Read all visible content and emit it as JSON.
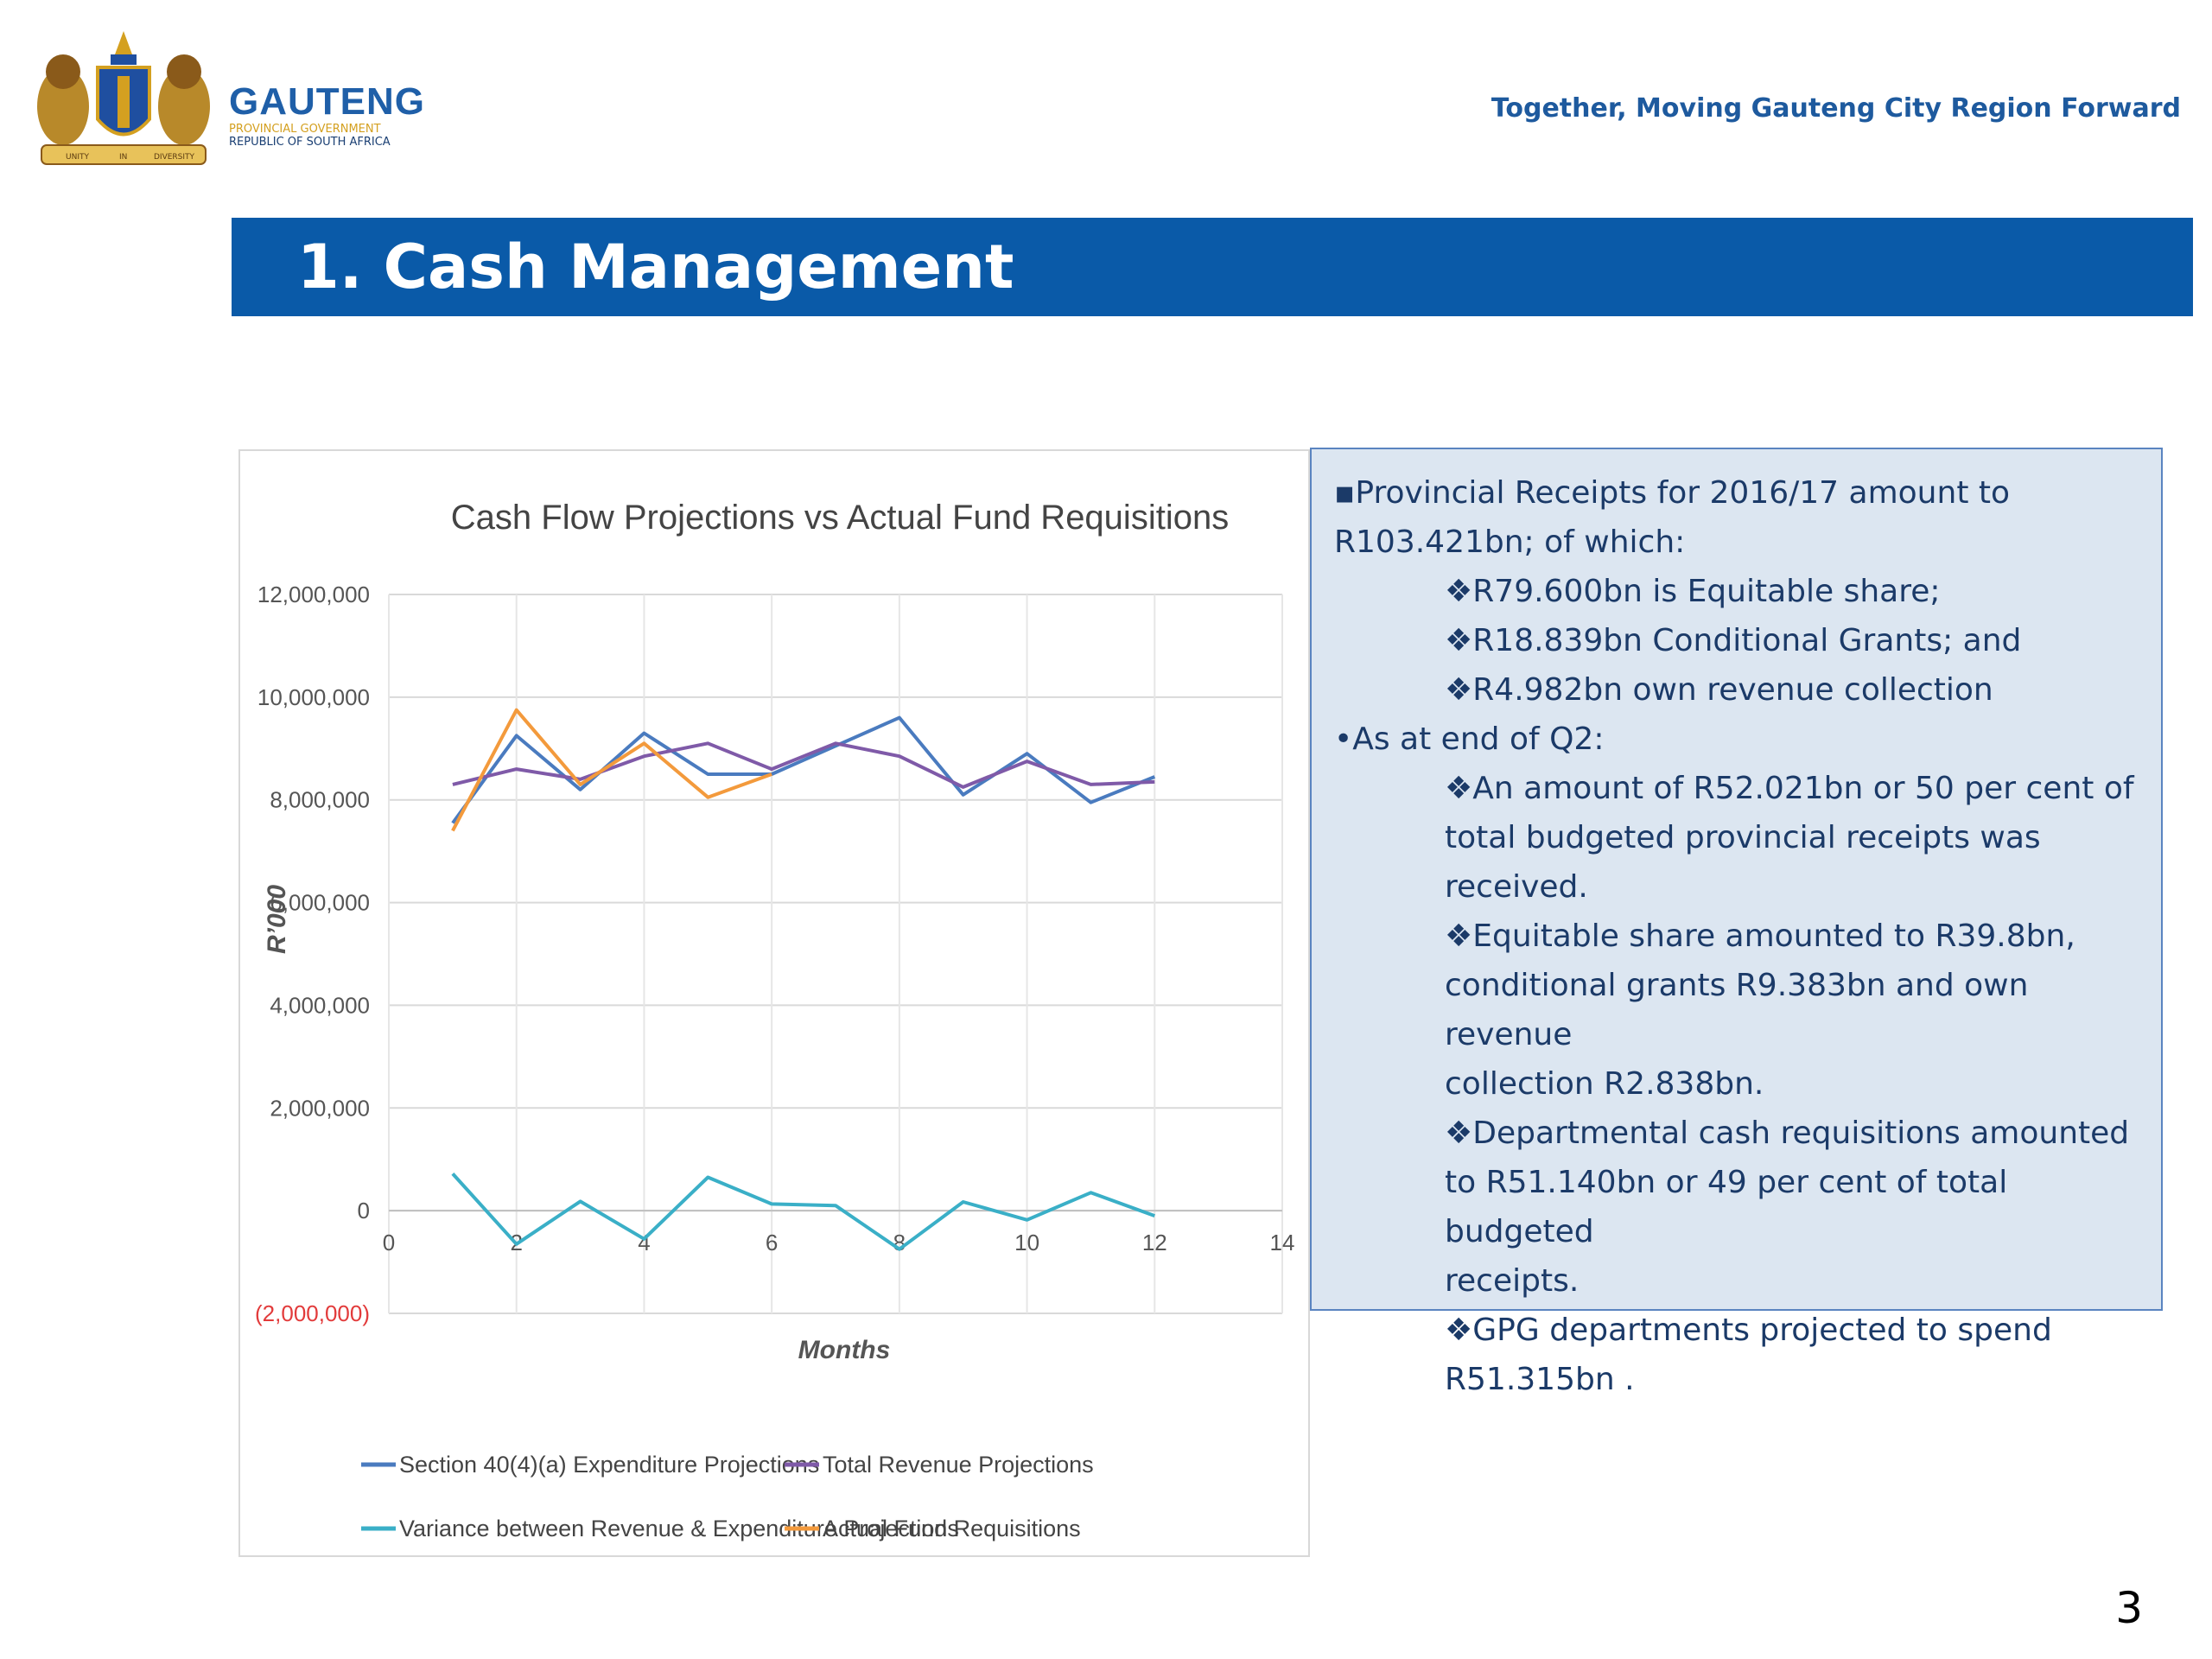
{
  "header": {
    "brand_name": "GAUTENG",
    "brand_sub1": "PROVINCIAL GOVERNMENT",
    "brand_sub2": "REPUBLIC OF SOUTH AFRICA",
    "tagline": "Together, Moving Gauteng City Region Forward",
    "logo_icon": "gauteng-coat-of-arms",
    "logo_text_left": "UNITY",
    "logo_text_mid": "IN",
    "logo_text_right": "DIVERSITY"
  },
  "title_bar": {
    "title": "1. Cash Management",
    "color": "#0a5aa8"
  },
  "info_box": {
    "lines": [
      "▪Provincial Receipts for 2016/17 amount to",
      "R103.421bn; of which:",
      "❖R79.600bn is Equitable share;",
      "❖R18.839bn Conditional Grants; and",
      "❖R4.982bn own revenue collection",
      "•As at end of Q2:",
      "❖An amount of R52.021bn or 50 per cent of",
      "total budgeted provincial receipts was",
      "received.",
      "❖Equitable share amounted to R39.8bn,",
      "conditional grants R9.383bn and own revenue",
      "collection R2.838bn.",
      "❖Departmental cash requisitions amounted",
      "to R51.140bn or 49 per cent of total budgeted",
      "receipts.",
      "❖GPG departments projected to spend",
      "R51.315bn ."
    ]
  },
  "page_number": "3",
  "chart_data": {
    "type": "line",
    "title": "Cash Flow Projections vs Actual Fund Requisitions",
    "xlabel": "Months",
    "ylabel": "R’000",
    "xlim": [
      0,
      14
    ],
    "ylim": [
      -2000000,
      12000000
    ],
    "x_ticks": [
      0,
      2,
      4,
      6,
      8,
      10,
      12,
      14
    ],
    "x_tick_labels": [
      "0",
      "2",
      "4",
      "6",
      "8",
      "10",
      "12",
      "14"
    ],
    "y_ticks": [
      -2000000,
      0,
      2000000,
      4000000,
      6000000,
      8000000,
      10000000,
      12000000
    ],
    "y_tick_labels": [
      "(2,000,000)",
      "0",
      "2,000,000",
      "4,000,000",
      "6,000,000",
      "8,000,000",
      "10,000,000",
      "12,000,000"
    ],
    "negative_tick_color": "#e23b3b",
    "grid": true,
    "legend_position": "bottom",
    "x": [
      1,
      2,
      3,
      4,
      5,
      6,
      7,
      8,
      9,
      10,
      11,
      12
    ],
    "series": [
      {
        "name": "Section 40(4)(a) Expenditure Projections",
        "color": "#4a7bbf",
        "values": [
          7550000,
          9250000,
          8200000,
          9300000,
          8500000,
          8500000,
          9050000,
          9600000,
          8100000,
          8900000,
          7950000,
          8450000
        ]
      },
      {
        "name": "Total Revenue Projections",
        "color": "#7f5aa8",
        "values": [
          8300000,
          8600000,
          8400000,
          8850000,
          9100000,
          8600000,
          9100000,
          8850000,
          8250000,
          8750000,
          8300000,
          8350000
        ]
      },
      {
        "name": "Variance between Revenue & Expenditure Projections",
        "color": "#3aafc7",
        "values": [
          720000,
          -650000,
          180000,
          -550000,
          650000,
          130000,
          100000,
          -750000,
          170000,
          -180000,
          350000,
          -100000
        ]
      },
      {
        "name": "Actual Fund Requisitions",
        "color": "#f39a3c",
        "values": [
          7400000,
          9750000,
          8300000,
          9100000,
          8050000,
          8500000,
          null,
          null,
          null,
          null,
          null,
          null
        ]
      }
    ]
  }
}
